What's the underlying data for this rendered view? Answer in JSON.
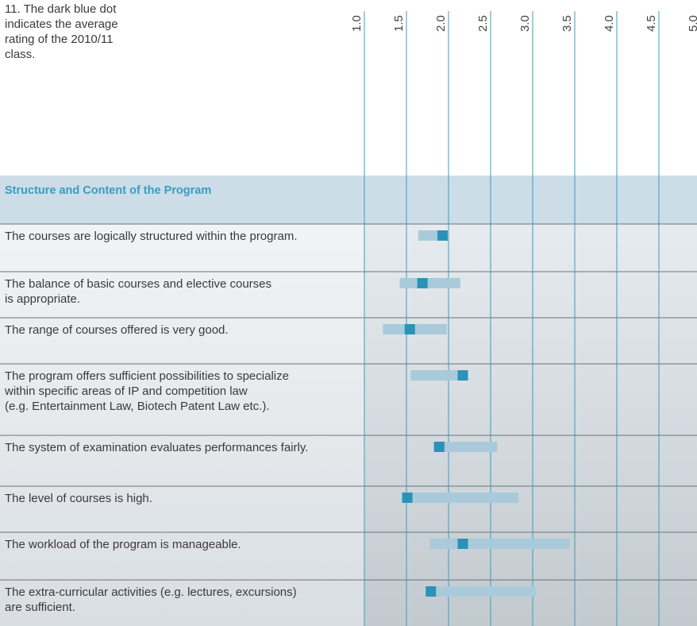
{
  "chart_data": {
    "type": "range-dot",
    "note": [
      "11. The dark blue dot",
      "indicates the average",
      "rating of the 2010/11",
      "class."
    ],
    "section": "Structure and Content of the Program",
    "xlim": [
      1,
      5
    ],
    "xticks": [
      {
        "value": 1,
        "label": "1.0"
      },
      {
        "value": 1.5,
        "label": "1.5"
      },
      {
        "value": 2,
        "label": "2.0"
      },
      {
        "value": 2.5,
        "label": "2.5"
      },
      {
        "value": 3,
        "label": "3.0"
      },
      {
        "value": 3.5,
        "label": "3.5"
      },
      {
        "value": 4,
        "label": "4.0"
      },
      {
        "value": 4.5,
        "label": "4.5"
      },
      {
        "value": 5,
        "label": "5.0"
      }
    ],
    "range_color": "#a9cadb",
    "average_color": "#2b92b8",
    "items": [
      {
        "label": [
          "The courses are logically structured within the program."
        ],
        "min": 1.64,
        "max": 2.0,
        "average": 1.93
      },
      {
        "label": [
          "The balance of basic courses and elective courses",
          "is appropriate."
        ],
        "min": 1.42,
        "max": 2.14,
        "average": 1.69
      },
      {
        "label": [
          "The range of courses offered is very good."
        ],
        "min": 1.22,
        "max": 1.98,
        "average": 1.54
      },
      {
        "label": [
          "The program offers sufficient possibilities to specialize",
          "within specific areas of IP and competition law",
          "(e.g. Entertainment Law, Biotech Patent Law etc.)."
        ],
        "min": 1.55,
        "max": 2.23,
        "average": 2.17
      },
      {
        "label": [
          "The system of examination evaluates performances fairly."
        ],
        "min": 1.82,
        "max": 2.58,
        "average": 1.89
      },
      {
        "label": [
          "The level of courses is high."
        ],
        "min": 1.45,
        "max": 2.83,
        "average": 1.51
      },
      {
        "label": [
          "The workload of the program is manageable."
        ],
        "min": 1.78,
        "max": 3.44,
        "average": 2.17
      },
      {
        "label": [
          "The extra-curricular activities (e.g. lectures, excursions)",
          "are sufficient."
        ],
        "min": 1.73,
        "max": 3.04,
        "average": 1.79
      }
    ]
  }
}
